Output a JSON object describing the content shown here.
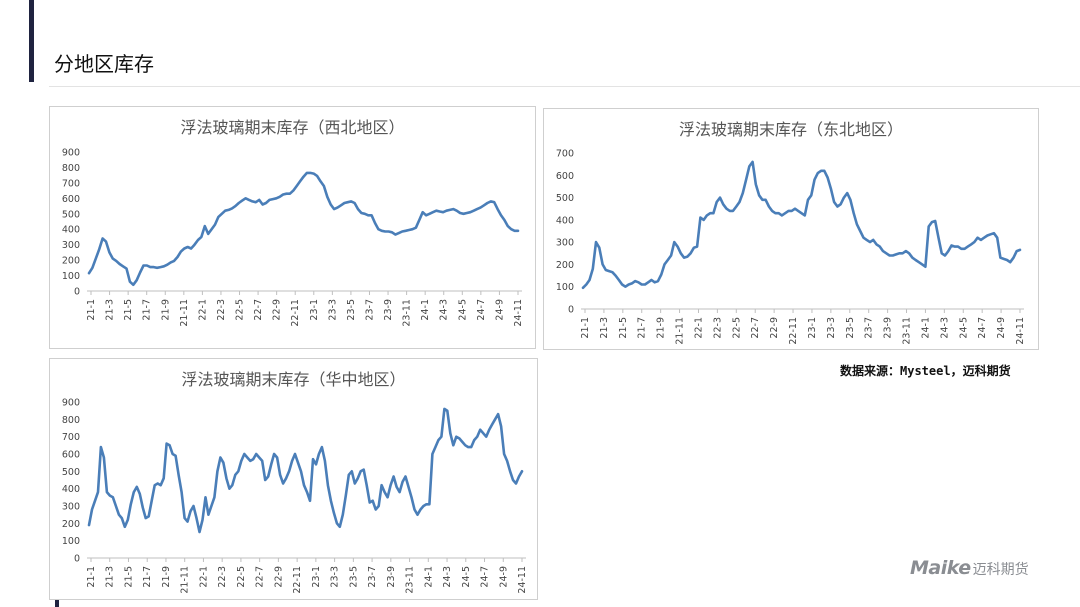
{
  "page": {
    "title": "分地区库存",
    "source": "数据来源：Mysteel，迈科期货"
  },
  "logo": {
    "mark": "Maike",
    "name": "迈科期货"
  },
  "colors": {
    "series": "#4a7eb8",
    "accent": "#1f2340"
  },
  "chart_data": [
    {
      "type": "line",
      "title": "浮法玻璃期末库存（西北地区）",
      "ylim": [
        0,
        900
      ],
      "yticks": [
        0,
        100,
        200,
        300,
        400,
        500,
        600,
        700,
        800,
        900
      ],
      "xticks": [
        "21-1",
        "21-3",
        "21-5",
        "21-7",
        "21-9",
        "21-11",
        "22-1",
        "22-3",
        "22-5",
        "22-7",
        "22-9",
        "22-11",
        "23-1",
        "23-3",
        "23-5",
        "23-7",
        "23-9",
        "23-11",
        "24-1",
        "24-3",
        "24-5",
        "24-7",
        "24-9",
        "24-11"
      ],
      "grid": false,
      "legend": "none",
      "series": [
        {
          "values": [
            115,
            150,
            210,
            270,
            340,
            320,
            250,
            210,
            195,
            175,
            160,
            145,
            60,
            40,
            70,
            120,
            165,
            165,
            155,
            155,
            150,
            155,
            160,
            170,
            185,
            195,
            220,
            255,
            275,
            285,
            275,
            300,
            330,
            350,
            420,
            370,
            400,
            430,
            480,
            500,
            520,
            525,
            535,
            550,
            570,
            585,
            600,
            590,
            580,
            575,
            590,
            560,
            570,
            590,
            595,
            600,
            610,
            625,
            630,
            630,
            650,
            680,
            710,
            740,
            765,
            765,
            760,
            745,
            710,
            680,
            610,
            560,
            530,
            540,
            555,
            570,
            575,
            580,
            570,
            530,
            505,
            500,
            490,
            490,
            440,
            400,
            390,
            385,
            385,
            380,
            365,
            375,
            385,
            390,
            395,
            400,
            410,
            460,
            510,
            490,
            500,
            510,
            520,
            515,
            510,
            520,
            525,
            530,
            520,
            505,
            500,
            505,
            510,
            520,
            530,
            540,
            555,
            570,
            580,
            575,
            530,
            490,
            460,
            420,
            400,
            390,
            390
          ]
        }
      ]
    },
    {
      "type": "line",
      "title": "浮法玻璃期末库存（东北地区）",
      "ylim": [
        0,
        700
      ],
      "yticks": [
        0,
        100,
        200,
        300,
        400,
        500,
        600,
        700
      ],
      "xticks": [
        "21-1",
        "21-3",
        "21-5",
        "21-7",
        "21-9",
        "21-11",
        "22-1",
        "22-3",
        "22-5",
        "22-7",
        "22-9",
        "22-11",
        "23-1",
        "23-3",
        "23-5",
        "23-7",
        "23-9",
        "23-11",
        "24-1",
        "24-3",
        "24-5",
        "24-7",
        "24-9",
        "24-11"
      ],
      "grid": false,
      "legend": "none",
      "series": [
        {
          "values": [
            95,
            110,
            130,
            180,
            300,
            275,
            200,
            175,
            170,
            165,
            150,
            130,
            110,
            100,
            110,
            115,
            125,
            120,
            110,
            110,
            120,
            130,
            120,
            125,
            155,
            200,
            220,
            240,
            300,
            280,
            250,
            230,
            235,
            250,
            275,
            280,
            410,
            400,
            420,
            430,
            430,
            480,
            500,
            470,
            450,
            440,
            440,
            460,
            480,
            520,
            580,
            640,
            660,
            560,
            510,
            490,
            490,
            460,
            440,
            430,
            430,
            420,
            430,
            440,
            440,
            450,
            440,
            430,
            420,
            490,
            510,
            580,
            610,
            620,
            620,
            590,
            540,
            480,
            460,
            470,
            500,
            520,
            490,
            430,
            380,
            350,
            320,
            310,
            300,
            310,
            290,
            280,
            260,
            250,
            240,
            240,
            245,
            250,
            250,
            260,
            250,
            230,
            220,
            210,
            200,
            190,
            370,
            390,
            395,
            320,
            250,
            240,
            260,
            285,
            280,
            280,
            270,
            270,
            280,
            290,
            300,
            320,
            310,
            320,
            330,
            335,
            340,
            320,
            230,
            225,
            220,
            210,
            230,
            260,
            265
          ]
        }
      ]
    },
    {
      "type": "line",
      "title": "浮法玻璃期末库存（华中地区）",
      "ylim": [
        0,
        900
      ],
      "yticks": [
        0,
        100,
        200,
        300,
        400,
        500,
        600,
        700,
        800,
        900
      ],
      "xticks": [
        "21-1",
        "21-3",
        "21-5",
        "21-7",
        "21-9",
        "21-11",
        "22-1",
        "22-3",
        "22-5",
        "22-7",
        "22-9",
        "22-11",
        "23-1",
        "23-3",
        "23-5",
        "23-7",
        "23-9",
        "23-11",
        "24-1",
        "24-3",
        "24-5",
        "24-7",
        "24-9",
        "24-11"
      ],
      "grid": false,
      "legend": "none",
      "series": [
        {
          "values": [
            190,
            280,
            330,
            380,
            640,
            580,
            380,
            360,
            350,
            300,
            250,
            230,
            180,
            220,
            310,
            380,
            410,
            370,
            290,
            230,
            240,
            330,
            420,
            430,
            420,
            460,
            660,
            650,
            600,
            590,
            480,
            380,
            230,
            210,
            270,
            300,
            230,
            150,
            220,
            350,
            250,
            300,
            350,
            500,
            580,
            550,
            460,
            400,
            420,
            480,
            500,
            560,
            600,
            580,
            560,
            570,
            600,
            580,
            560,
            450,
            470,
            540,
            600,
            580,
            480,
            430,
            460,
            500,
            560,
            600,
            550,
            500,
            420,
            380,
            330,
            570,
            540,
            600,
            640,
            560,
            420,
            330,
            260,
            200,
            180,
            250,
            360,
            480,
            500,
            430,
            460,
            500,
            510,
            420,
            320,
            330,
            280,
            300,
            420,
            380,
            350,
            420,
            470,
            410,
            380,
            440,
            470,
            410,
            350,
            280,
            250,
            280,
            300,
            310,
            310,
            600,
            640,
            680,
            700,
            860,
            850,
            720,
            650,
            700,
            690,
            670,
            650,
            640,
            640,
            680,
            700,
            740,
            720,
            700,
            740,
            770,
            800,
            830,
            760,
            600,
            560,
            500,
            450,
            430,
            470,
            500
          ]
        }
      ]
    }
  ]
}
